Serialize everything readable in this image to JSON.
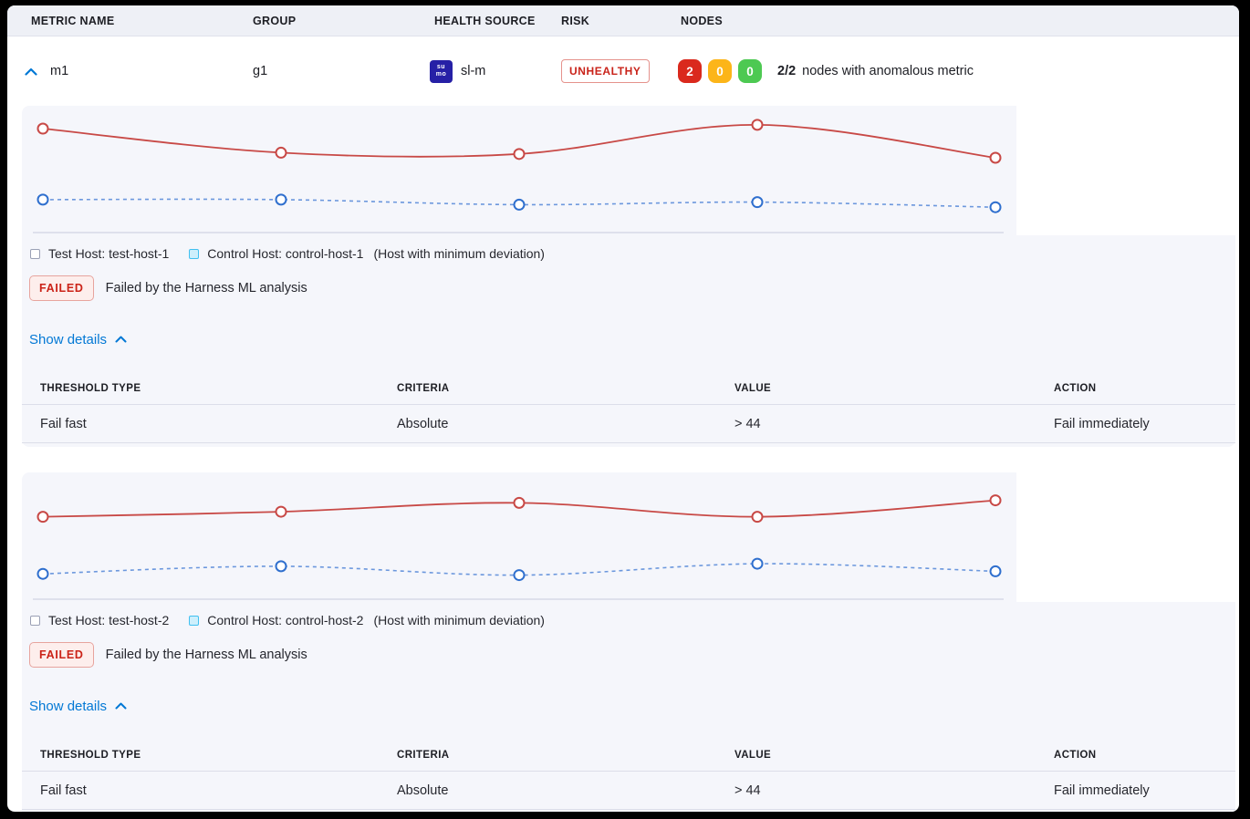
{
  "header": {
    "columns": [
      "METRIC NAME",
      "GROUP",
      "HEALTH SOURCE",
      "RISK",
      "NODES"
    ]
  },
  "metric_row": {
    "metric_name": "m1",
    "group": "g1",
    "health_source": {
      "name": "sl-m",
      "icon_lines": [
        "su",
        "mo"
      ]
    },
    "risk_label": "UNHEALTHY",
    "nodes": {
      "anomalous_count": "2",
      "warning_count": "0",
      "healthy_count": "0",
      "summary_bold": "2/2",
      "summary_text": "nodes with anomalous metric"
    }
  },
  "host_blocks": [
    {
      "legend": {
        "test_host_label": "Test Host: test-host-1",
        "control_host_label": "Control Host: control-host-1",
        "deviation_note": "(Host with minimum deviation)"
      },
      "status_badge": "FAILED",
      "status_text": "Failed by the Harness ML analysis",
      "details_link": "Show details",
      "table": {
        "headers": [
          "THRESHOLD TYPE",
          "CRITERIA",
          "VALUE",
          "ACTION"
        ],
        "rows": [
          [
            "Fail fast",
            "Absolute",
            "> 44",
            "Fail immediately"
          ]
        ]
      }
    },
    {
      "legend": {
        "test_host_label": "Test Host: test-host-2",
        "control_host_label": "Control Host: control-host-2",
        "deviation_note": "(Host with minimum deviation)"
      },
      "status_badge": "FAILED",
      "status_text": "Failed by the Harness ML analysis",
      "details_link": "Show details",
      "table": {
        "headers": [
          "THRESHOLD TYPE",
          "CRITERIA",
          "VALUE",
          "ACTION"
        ],
        "rows": [
          [
            "Fail fast",
            "Absolute",
            "> 44",
            "Fail immediately"
          ]
        ]
      }
    }
  ],
  "chart_data": [
    {
      "type": "line",
      "x": [
        1,
        2,
        3,
        4,
        5
      ],
      "ylim": [
        0,
        100
      ],
      "grid": false,
      "legend_position": "bottom",
      "series": [
        {
          "name": "test-host-1",
          "color": "#c84946",
          "marker_color": "#c84946",
          "style": "solid",
          "values": [
            82,
            63,
            62,
            85,
            59
          ]
        },
        {
          "name": "control-host-1",
          "color": "#6b97dd",
          "marker_color": "#2f6fce",
          "style": "dashed",
          "values": [
            26,
            26,
            22,
            24,
            20
          ]
        }
      ]
    },
    {
      "type": "line",
      "x": [
        1,
        2,
        3,
        4,
        5
      ],
      "ylim": [
        0,
        100
      ],
      "grid": false,
      "legend_position": "bottom",
      "series": [
        {
          "name": "test-host-2",
          "color": "#c84946",
          "marker_color": "#c84946",
          "style": "solid",
          "values": [
            65,
            69,
            76,
            65,
            78
          ]
        },
        {
          "name": "control-host-2",
          "color": "#6b97dd",
          "marker_color": "#2f6fce",
          "style": "dashed",
          "values": [
            20,
            26,
            19,
            28,
            22
          ]
        }
      ]
    }
  ],
  "colors": {
    "accent_blue": "#0278d5",
    "risk_text": "#c9231a",
    "risk_border": "#e5928c",
    "failed_text": "#cb2318",
    "failed_bg": "#fdeeec",
    "failed_border": "#e7a49e",
    "node_red": "#da291d",
    "node_yellow": "#fcb519",
    "node_green": "#4dc952",
    "panel_bg": "#f5f6fb",
    "header_bg": "#eef0f6",
    "sumo_bg": "#2620a6",
    "test_legend_border": "#9aa0b5",
    "control_legend_bg": "#cdeffc",
    "control_legend_border": "#41c0f0",
    "axis_line": "#c6cbdd",
    "text_dark": "#1d1e24",
    "text_body": "#26272e"
  }
}
